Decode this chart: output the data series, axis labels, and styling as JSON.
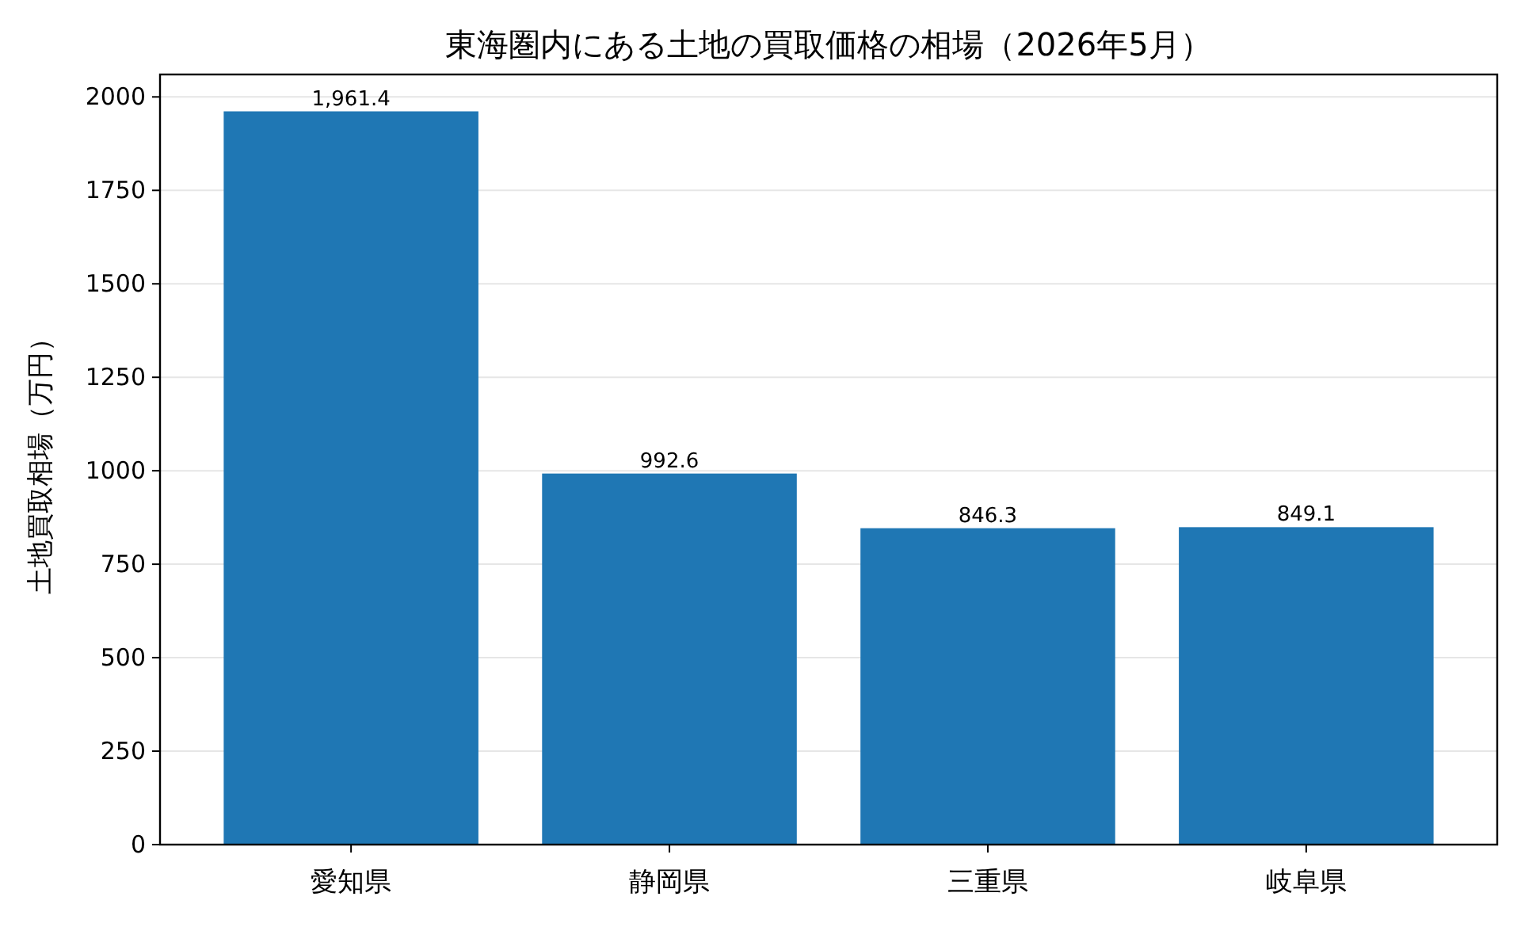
{
  "chart_data": {
    "type": "bar",
    "title": "東海圏内にある土地の買取価格の相場（2026年5月）",
    "ylabel": "土地買取相場（万円）",
    "categories": [
      "愛知県",
      "静岡県",
      "三重県",
      "岐阜県"
    ],
    "series": [
      {
        "color": "#1f77b4",
        "values": [
          1961.4,
          992.6,
          846.3,
          849.1
        ],
        "value_labels": [
          "1,961.4",
          "992.6",
          "846.3",
          "849.1"
        ]
      }
    ],
    "ylim": [
      0,
      2060
    ],
    "yticks": [
      0,
      250,
      500,
      750,
      1000,
      1250,
      1500,
      1750,
      2000
    ],
    "grid": "y"
  }
}
